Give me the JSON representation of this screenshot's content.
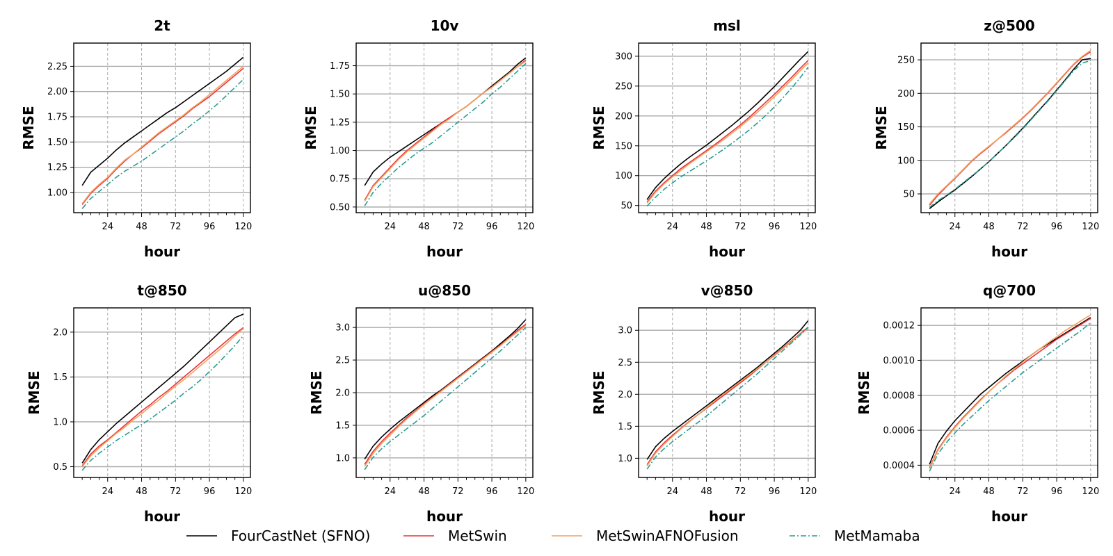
{
  "chart_data": {
    "type": "line",
    "x": [
      6,
      12,
      18,
      24,
      30,
      36,
      42,
      48,
      54,
      60,
      66,
      72,
      78,
      84,
      90,
      96,
      102,
      108,
      114,
      120
    ],
    "xticks": [
      24,
      48,
      72,
      96,
      120
    ],
    "xlabel": "hour",
    "ylabel": "RMSE",
    "series_styles": [
      {
        "name": "FourCastNet (SFNO)",
        "color": "#000000",
        "dash": ""
      },
      {
        "name": "MetSwin",
        "color": "#e8323c",
        "dash": ""
      },
      {
        "name": "MetSwinAFNOFusion",
        "color": "#f4a15d",
        "dash": ""
      },
      {
        "name": "MetMamaba",
        "color": "#2a9d8f",
        "dash": "dashdot"
      }
    ],
    "legend": {
      "position": "bottom-center",
      "entries": [
        "FourCastNet (SFNO)",
        "MetSwin",
        "MetSwinAFNOFusion",
        "MetMamaba"
      ]
    },
    "panels": [
      {
        "title": "2t",
        "ylim": [
          0.8,
          2.48
        ],
        "yticks": [
          1.0,
          1.25,
          1.5,
          1.75,
          2.0,
          2.25
        ],
        "ytick_labels": [
          "1.00",
          "1.25",
          "1.50",
          "1.75",
          "2.00",
          "2.25"
        ],
        "series": [
          {
            "name": "FourCastNet (SFNO)",
            "values": [
              1.07,
              1.2,
              1.27,
              1.34,
              1.42,
              1.49,
              1.55,
              1.61,
              1.67,
              1.73,
              1.79,
              1.84,
              1.9,
              1.96,
              2.02,
              2.08,
              2.14,
              2.2,
              2.27,
              2.34
            ]
          },
          {
            "name": "MetSwin",
            "values": [
              0.88,
              0.99,
              1.07,
              1.14,
              1.23,
              1.31,
              1.38,
              1.44,
              1.51,
              1.58,
              1.64,
              1.7,
              1.76,
              1.83,
              1.89,
              1.95,
              2.02,
              2.09,
              2.16,
              2.23
            ]
          },
          {
            "name": "MetSwinAFNOFusion",
            "values": [
              0.89,
              1.0,
              1.08,
              1.15,
              1.24,
              1.32,
              1.38,
              1.45,
              1.52,
              1.59,
              1.65,
              1.71,
              1.77,
              1.84,
              1.9,
              1.97,
              2.04,
              2.11,
              2.18,
              2.25
            ]
          },
          {
            "name": "MetMamaba",
            "values": [
              0.84,
              0.94,
              1.01,
              1.08,
              1.15,
              1.21,
              1.26,
              1.31,
              1.37,
              1.43,
              1.49,
              1.55,
              1.61,
              1.68,
              1.74,
              1.81,
              1.88,
              1.96,
              2.04,
              2.12
            ]
          }
        ]
      },
      {
        "title": "10v",
        "ylim": [
          0.45,
          1.95
        ],
        "yticks": [
          0.5,
          0.75,
          1.0,
          1.25,
          1.5,
          1.75
        ],
        "ytick_labels": [
          "0.50",
          "0.75",
          "1.00",
          "1.25",
          "1.50",
          "1.75"
        ],
        "series": [
          {
            "name": "FourCastNet (SFNO)",
            "values": [
              0.69,
              0.81,
              0.88,
              0.94,
              0.99,
              1.04,
              1.09,
              1.14,
              1.19,
              1.24,
              1.29,
              1.34,
              1.39,
              1.45,
              1.51,
              1.57,
              1.63,
              1.69,
              1.76,
              1.82
            ]
          },
          {
            "name": "MetSwin",
            "values": [
              0.56,
              0.69,
              0.77,
              0.85,
              0.93,
              1.0,
              1.06,
              1.12,
              1.18,
              1.24,
              1.29,
              1.34,
              1.39,
              1.45,
              1.51,
              1.56,
              1.62,
              1.68,
              1.74,
              1.8
            ]
          },
          {
            "name": "MetSwinAFNOFusion",
            "values": [
              0.55,
              0.68,
              0.76,
              0.84,
              0.92,
              0.99,
              1.05,
              1.11,
              1.17,
              1.23,
              1.28,
              1.34,
              1.39,
              1.45,
              1.51,
              1.56,
              1.62,
              1.68,
              1.74,
              1.79
            ]
          },
          {
            "name": "MetMamaba",
            "values": [
              0.51,
              0.63,
              0.71,
              0.78,
              0.85,
              0.91,
              0.97,
              1.02,
              1.07,
              1.13,
              1.19,
              1.25,
              1.31,
              1.37,
              1.43,
              1.5,
              1.56,
              1.63,
              1.7,
              1.77
            ]
          }
        ]
      },
      {
        "title": "msl",
        "ylim": [
          38,
          322
        ],
        "yticks": [
          50,
          100,
          150,
          200,
          250,
          300
        ],
        "ytick_labels": [
          "50",
          "100",
          "150",
          "200",
          "250",
          "300"
        ],
        "series": [
          {
            "name": "FourCastNet (SFNO)",
            "values": [
              60,
              80,
              95,
              108,
              120,
              131,
              141,
              151,
              162,
              173,
              184,
              196,
              208,
              221,
              235,
              249,
              264,
              279,
              294,
              308
            ]
          },
          {
            "name": "MetSwin",
            "values": [
              56,
              74,
              88,
              100,
              112,
              122,
              132,
              142,
              152,
              163,
              174,
              185,
              197,
              210,
              223,
              236,
              250,
              264,
              279,
              293
            ]
          },
          {
            "name": "MetSwinAFNOFusion",
            "values": [
              54,
              72,
              86,
              98,
              109,
              120,
              130,
              140,
              150,
              160,
              171,
              182,
              194,
              206,
              219,
              232,
              246,
              260,
              275,
              289
            ]
          },
          {
            "name": "MetMamaba",
            "values": [
              49,
              64,
              77,
              88,
              98,
              107,
              116,
              125,
              134,
              144,
              154,
              165,
              176,
              188,
              201,
              215,
              230,
              246,
              263,
              282
            ]
          }
        ]
      },
      {
        "title": "z@500",
        "ylim": [
          22,
          275
        ],
        "yticks": [
          50,
          100,
          150,
          200,
          250
        ],
        "ytick_labels": [
          "50",
          "100",
          "150",
          "200",
          "250"
        ],
        "series": [
          {
            "name": "FourCastNet (SFNO)",
            "values": [
              28,
              38,
              47,
              56,
              66,
              76,
              87,
              98,
              110,
              122,
              135,
              148,
              162,
              176,
              190,
              205,
              220,
              236,
              250,
              252
            ]
          },
          {
            "name": "MetSwin",
            "values": [
              33,
              48,
              61,
              73,
              86,
              99,
              110,
              120,
              131,
              141,
              152,
              163,
              175,
              188,
              201,
              215,
              229,
              243,
              254,
              262
            ]
          },
          {
            "name": "MetSwinAFNOFusion",
            "values": [
              35,
              50,
              62,
              74,
              87,
              100,
              111,
              121,
              131,
              142,
              153,
              164,
              176,
              189,
              202,
              216,
              230,
              244,
              255,
              264
            ]
          },
          {
            "name": "MetMamaba",
            "values": [
              30,
              40,
              48,
              57,
              67,
              77,
              87,
              98,
              110,
              122,
              134,
              147,
              161,
              175,
              189,
              204,
              219,
              234,
              245,
              249
            ]
          }
        ]
      },
      {
        "title": "t@850",
        "ylim": [
          0.38,
          2.27
        ],
        "yticks": [
          0.5,
          1.0,
          1.5,
          2.0
        ],
        "ytick_labels": [
          "0.5",
          "1.0",
          "1.5",
          "2.0"
        ],
        "series": [
          {
            "name": "FourCastNet (SFNO)",
            "values": [
              0.54,
              0.69,
              0.8,
              0.89,
              0.98,
              1.06,
              1.14,
              1.22,
              1.3,
              1.38,
              1.46,
              1.54,
              1.62,
              1.71,
              1.8,
              1.89,
              1.98,
              2.07,
              2.16,
              2.2
            ]
          },
          {
            "name": "MetSwin",
            "values": [
              0.51,
              0.64,
              0.73,
              0.8,
              0.88,
              0.96,
              1.04,
              1.12,
              1.19,
              1.27,
              1.34,
              1.42,
              1.5,
              1.58,
              1.66,
              1.74,
              1.82,
              1.9,
              1.98,
              2.05
            ]
          },
          {
            "name": "MetSwinAFNOFusion",
            "values": [
              0.5,
              0.62,
              0.71,
              0.79,
              0.87,
              0.94,
              1.02,
              1.09,
              1.17,
              1.24,
              1.32,
              1.4,
              1.47,
              1.55,
              1.63,
              1.71,
              1.79,
              1.87,
              1.96,
              2.04
            ]
          },
          {
            "name": "MetMamaba",
            "values": [
              0.46,
              0.57,
              0.65,
              0.72,
              0.79,
              0.85,
              0.91,
              0.97,
              1.03,
              1.1,
              1.17,
              1.24,
              1.32,
              1.39,
              1.47,
              1.56,
              1.65,
              1.75,
              1.85,
              1.96
            ]
          }
        ]
      },
      {
        "title": "u@850",
        "ylim": [
          0.7,
          3.3
        ],
        "yticks": [
          1.0,
          1.5,
          2.0,
          2.5,
          3.0
        ],
        "ytick_labels": [
          "1.0",
          "1.5",
          "2.0",
          "2.5",
          "3.0"
        ],
        "series": [
          {
            "name": "FourCastNet (SFNO)",
            "values": [
              0.98,
              1.18,
              1.32,
              1.44,
              1.55,
              1.65,
              1.75,
              1.85,
              1.95,
              2.04,
              2.14,
              2.24,
              2.34,
              2.44,
              2.54,
              2.64,
              2.75,
              2.86,
              2.98,
              3.12
            ]
          },
          {
            "name": "MetSwin",
            "values": [
              0.9,
              1.1,
              1.25,
              1.38,
              1.5,
              1.62,
              1.72,
              1.83,
              1.93,
              2.03,
              2.13,
              2.23,
              2.33,
              2.43,
              2.53,
              2.63,
              2.73,
              2.84,
              2.95,
              3.05
            ]
          },
          {
            "name": "MetSwinAFNOFusion",
            "values": [
              0.87,
              1.07,
              1.22,
              1.35,
              1.48,
              1.6,
              1.71,
              1.82,
              1.92,
              2.02,
              2.12,
              2.22,
              2.32,
              2.42,
              2.52,
              2.62,
              2.72,
              2.83,
              2.93,
              3.03
            ]
          },
          {
            "name": "MetMamaba",
            "values": [
              0.82,
              1.01,
              1.14,
              1.25,
              1.35,
              1.45,
              1.55,
              1.65,
              1.76,
              1.87,
              1.98,
              2.09,
              2.2,
              2.31,
              2.42,
              2.53,
              2.64,
              2.76,
              2.88,
              3.0
            ]
          }
        ]
      },
      {
        "title": "v@850",
        "ylim": [
          0.7,
          3.35
        ],
        "yticks": [
          1.0,
          1.5,
          2.0,
          2.5,
          3.0
        ],
        "ytick_labels": [
          "1.0",
          "1.5",
          "2.0",
          "2.5",
          "3.0"
        ],
        "series": [
          {
            "name": "FourCastNet (SFNO)",
            "values": [
              0.98,
              1.18,
              1.31,
              1.42,
              1.52,
              1.62,
              1.72,
              1.82,
              1.92,
              2.02,
              2.12,
              2.22,
              2.32,
              2.42,
              2.53,
              2.64,
              2.75,
              2.87,
              2.99,
              3.15
            ]
          },
          {
            "name": "MetSwin",
            "values": [
              0.9,
              1.1,
              1.24,
              1.36,
              1.47,
              1.58,
              1.68,
              1.78,
              1.88,
              1.98,
              2.08,
              2.18,
              2.28,
              2.39,
              2.5,
              2.61,
              2.72,
              2.83,
              2.94,
              3.05
            ]
          },
          {
            "name": "MetSwinAFNOFusion",
            "values": [
              0.88,
              1.08,
              1.22,
              1.34,
              1.46,
              1.57,
              1.68,
              1.79,
              1.9,
              2.0,
              2.1,
              2.2,
              2.3,
              2.4,
              2.5,
              2.6,
              2.71,
              2.82,
              2.93,
              3.03
            ]
          },
          {
            "name": "MetMamaba",
            "values": [
              0.83,
              1.02,
              1.15,
              1.26,
              1.36,
              1.46,
              1.56,
              1.66,
              1.77,
              1.88,
              1.99,
              2.1,
              2.21,
              2.32,
              2.44,
              2.56,
              2.68,
              2.8,
              2.92,
              3.05
            ]
          }
        ]
      },
      {
        "title": "q@700",
        "ylim": [
          0.00033,
          0.0013
        ],
        "yticks": [
          0.0004,
          0.0006,
          0.0008,
          0.001,
          0.0012
        ],
        "ytick_labels": [
          "0.0004",
          "0.0006",
          "0.0008",
          "0.0010",
          "0.0012"
        ],
        "series": [
          {
            "name": "FourCastNet (SFNO)",
            "values": [
              0.000405,
              0.000525,
              0.000595,
              0.000655,
              0.000705,
              0.000755,
              0.000805,
              0.000845,
              0.000885,
              0.000925,
              0.00096,
              0.000995,
              0.00103,
              0.001065,
              0.001095,
              0.001125,
              0.001155,
              0.001185,
              0.001215,
              0.001245
            ]
          },
          {
            "name": "MetSwin",
            "values": [
              0.000385,
              0.00049,
              0.00056,
              0.00062,
              0.000675,
              0.000725,
              0.000775,
              0.00082,
              0.000865,
              0.000905,
              0.000945,
              0.00098,
              0.001015,
              0.00105,
              0.001085,
              0.00112,
              0.00115,
              0.00118,
              0.00121,
              0.00124
            ]
          },
          {
            "name": "MetSwinAFNOFusion",
            "values": [
              0.00038,
              0.000485,
              0.000555,
              0.000615,
              0.00067,
              0.00072,
              0.00077,
              0.00082,
              0.000865,
              0.00091,
              0.00095,
              0.00099,
              0.00103,
              0.001065,
              0.0011,
              0.001135,
              0.00117,
              0.0012,
              0.00123,
              0.00126
            ]
          },
          {
            "name": "MetMamaba",
            "values": [
              0.000365,
              0.000465,
              0.00053,
              0.000585,
              0.000635,
              0.00068,
              0.000725,
              0.00077,
              0.00081,
              0.00085,
              0.00089,
              0.00093,
              0.000965,
              0.001,
              0.001035,
              0.00107,
              0.001105,
              0.00114,
              0.001175,
              0.001215
            ]
          }
        ]
      }
    ]
  }
}
